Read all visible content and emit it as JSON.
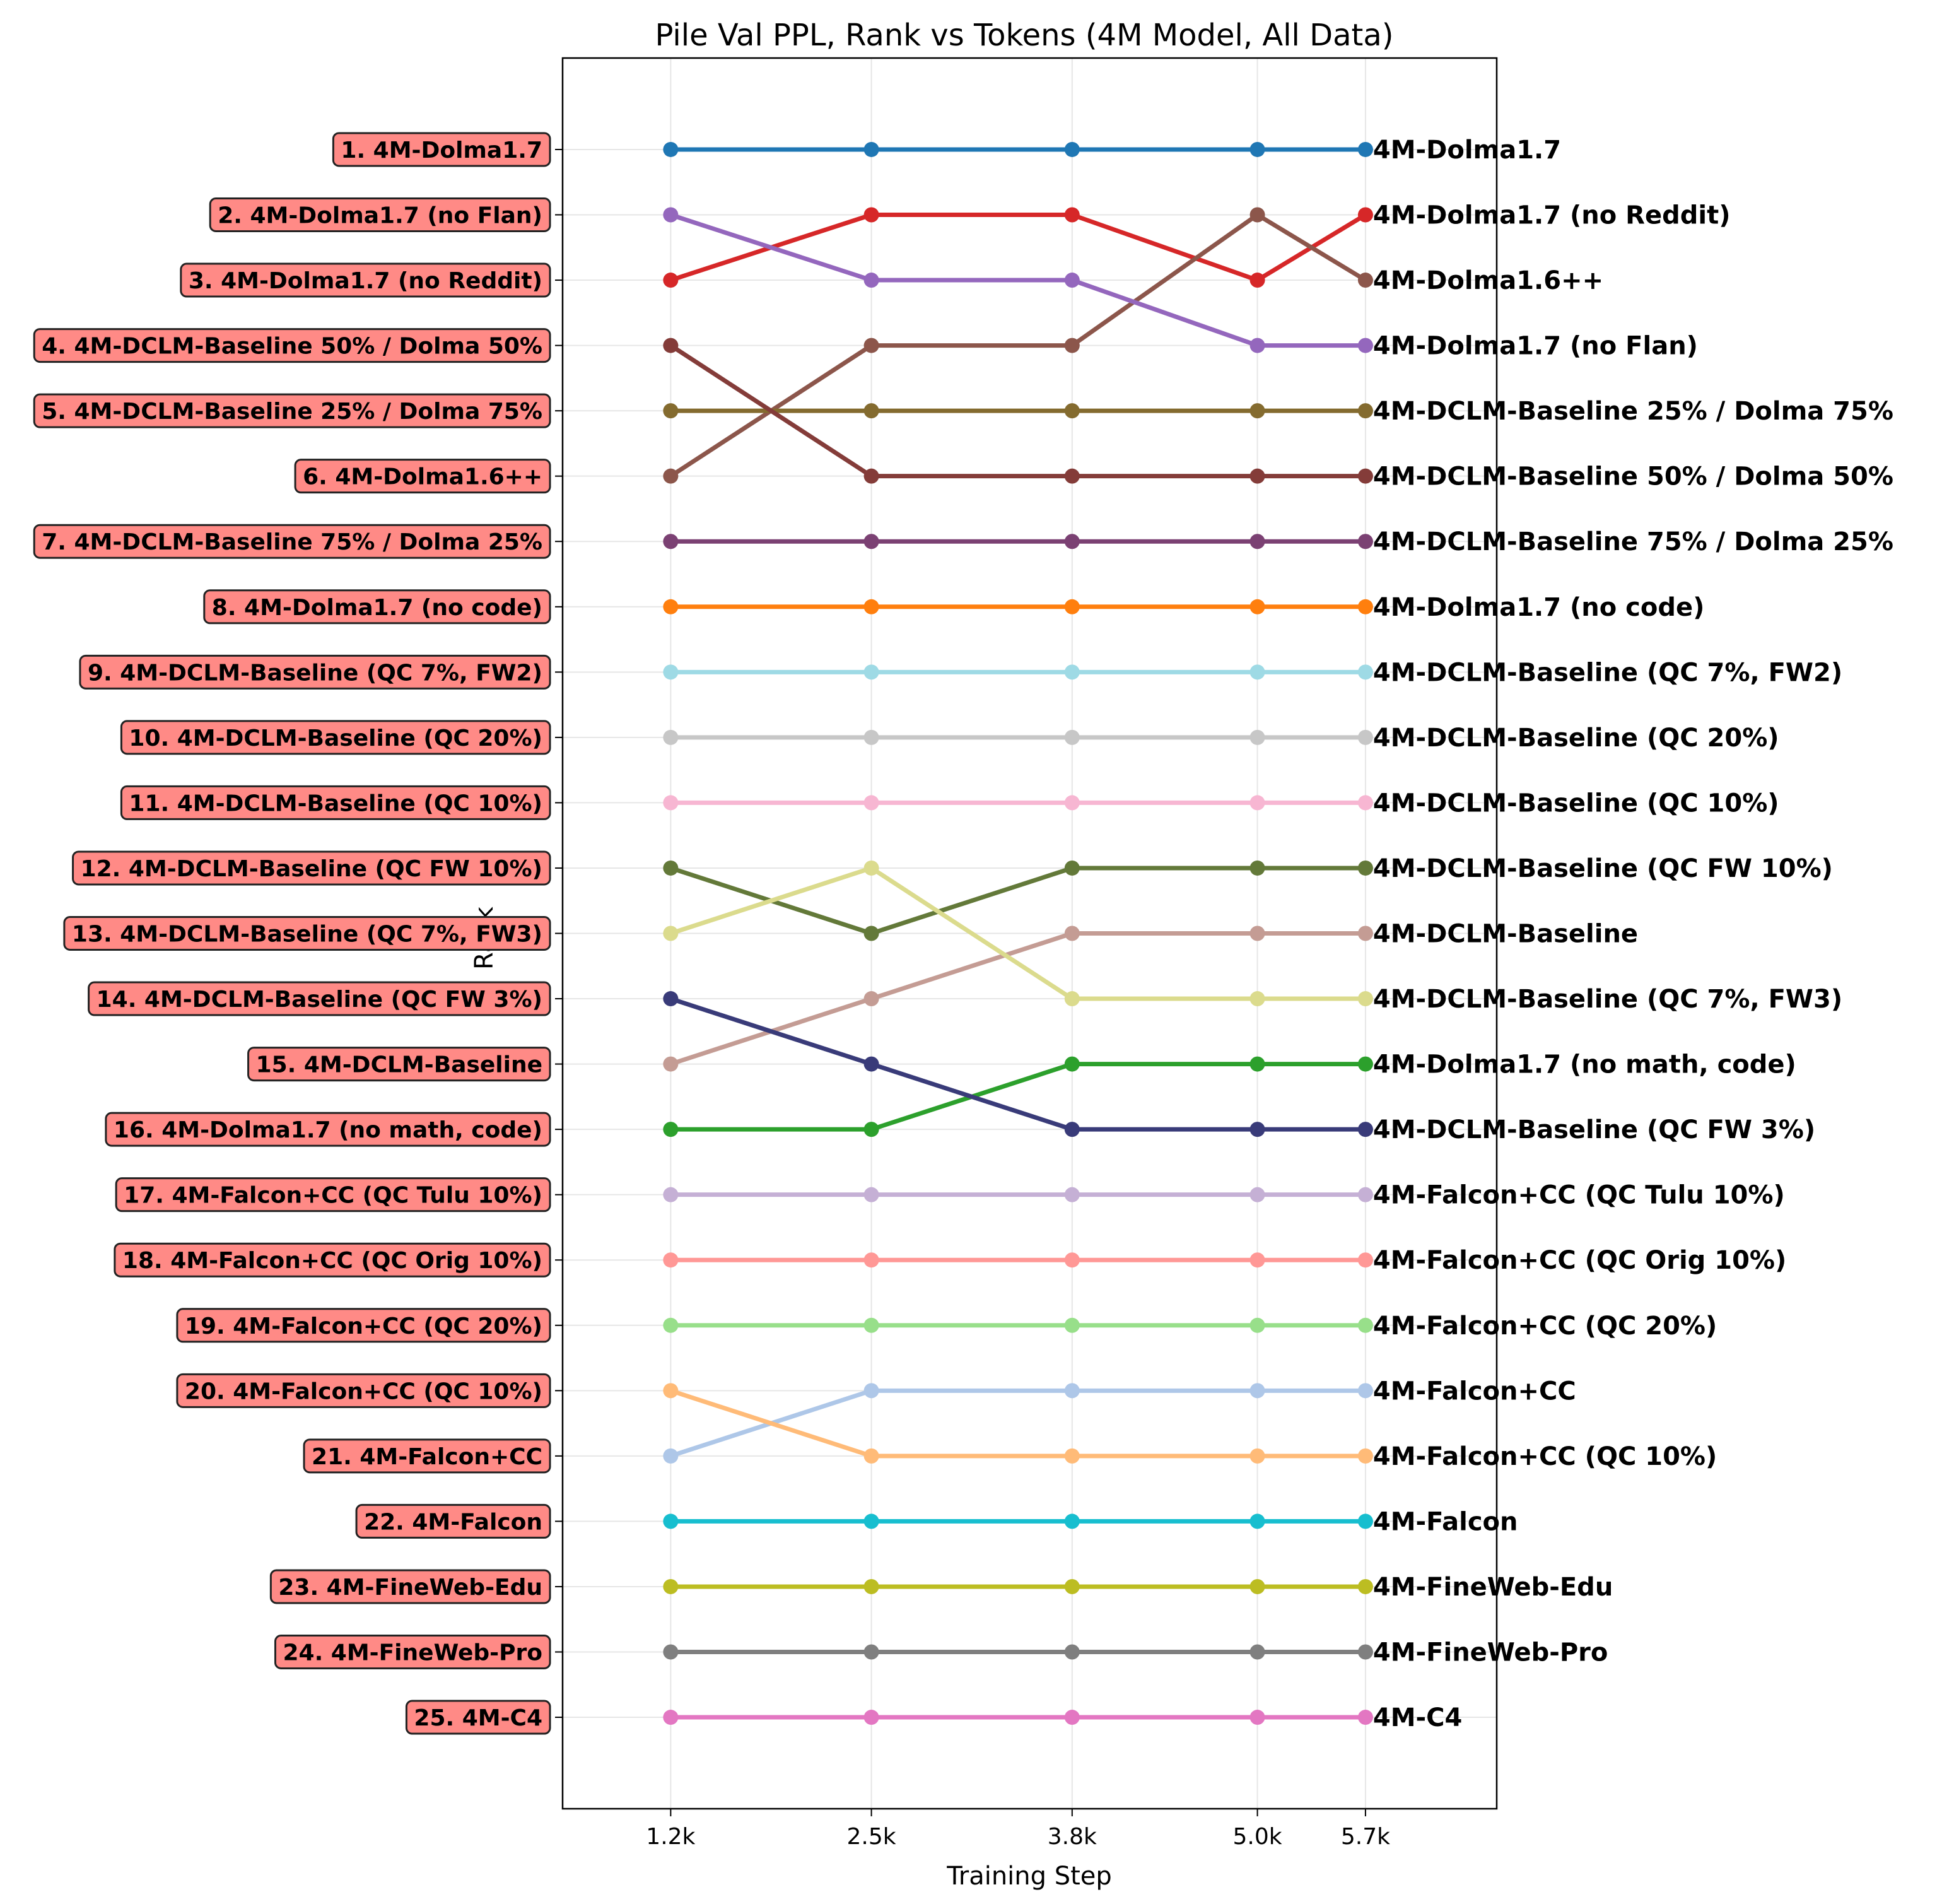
{
  "chart_data": {
    "type": "line",
    "title": "Pile Val PPL, Rank vs Tokens (4M Model, All Data)",
    "xlabel": "Training Step",
    "ylabel": "Rank",
    "x": [
      "1.2k",
      "2.5k",
      "3.8k",
      "5.0k",
      "5.7k"
    ],
    "x_values": [
      1.2,
      2.5,
      3.8,
      5.0,
      5.7
    ],
    "xlim": [
      0.5,
      6.55
    ],
    "ylim": [
      26.4,
      -0.4
    ],
    "y_inverted": true,
    "grid": true,
    "left_labels": [
      "1. 4M-Dolma1.7",
      "2. 4M-Dolma1.7 (no Flan)",
      "3. 4M-Dolma1.7 (no Reddit)",
      "4. 4M-DCLM-Baseline 50% / Dolma 50%",
      "5. 4M-DCLM-Baseline 25% / Dolma 75%",
      "6. 4M-Dolma1.6++",
      "7. 4M-DCLM-Baseline 75% / Dolma 25%",
      "8. 4M-Dolma1.7 (no code)",
      "9. 4M-DCLM-Baseline (QC 7%, FW2)",
      "10. 4M-DCLM-Baseline (QC 20%)",
      "11. 4M-DCLM-Baseline (QC 10%)",
      "12. 4M-DCLM-Baseline (QC FW 10%)",
      "13. 4M-DCLM-Baseline (QC 7%, FW3)",
      "14. 4M-DCLM-Baseline (QC FW 3%)",
      "15. 4M-DCLM-Baseline",
      "16. 4M-Dolma1.7 (no math, code)",
      "17. 4M-Falcon+CC (QC Tulu 10%)",
      "18. 4M-Falcon+CC (QC Orig 10%)",
      "19. 4M-Falcon+CC (QC 20%)",
      "20. 4M-Falcon+CC (QC 10%)",
      "21. 4M-Falcon+CC",
      "22. 4M-Falcon",
      "23. 4M-FineWeb-Edu",
      "24. 4M-FineWeb-Pro",
      "25. 4M-C4"
    ],
    "left_label_box_color": "#ff8a86",
    "series": [
      {
        "name": "4M-Dolma1.7",
        "color": "#1f77b4",
        "ranks": [
          1,
          1,
          1,
          1,
          1
        ]
      },
      {
        "name": "4M-Dolma1.7 (no Reddit)",
        "color": "#d62728",
        "ranks": [
          3,
          2,
          2,
          3,
          2
        ]
      },
      {
        "name": "4M-Dolma1.6++",
        "color": "#8c564b",
        "ranks": [
          6,
          4,
          4,
          2,
          3
        ]
      },
      {
        "name": "4M-Dolma1.7 (no Flan)",
        "color": "#9467bd",
        "ranks": [
          2,
          3,
          3,
          4,
          4
        ]
      },
      {
        "name": "4M-DCLM-Baseline 25% / Dolma 75%",
        "color": "#846b2f",
        "ranks": [
          5,
          5,
          5,
          5,
          5
        ]
      },
      {
        "name": "4M-DCLM-Baseline 50% / Dolma 50%",
        "color": "#843c39",
        "ranks": [
          4,
          6,
          6,
          6,
          6
        ]
      },
      {
        "name": "4M-DCLM-Baseline 75% / Dolma 25%",
        "color": "#7b4173",
        "ranks": [
          7,
          7,
          7,
          7,
          7
        ]
      },
      {
        "name": "4M-Dolma1.7 (no code)",
        "color": "#ff7f0e",
        "ranks": [
          8,
          8,
          8,
          8,
          8
        ]
      },
      {
        "name": "4M-DCLM-Baseline (QC 7%, FW2)",
        "color": "#9edae5",
        "ranks": [
          9,
          9,
          9,
          9,
          9
        ]
      },
      {
        "name": "4M-DCLM-Baseline (QC 20%)",
        "color": "#c7c7c7",
        "ranks": [
          10,
          10,
          10,
          10,
          10
        ]
      },
      {
        "name": "4M-DCLM-Baseline (QC 10%)",
        "color": "#f7b6d2",
        "ranks": [
          11,
          11,
          11,
          11,
          11
        ]
      },
      {
        "name": "4M-DCLM-Baseline (QC FW 10%)",
        "color": "#637939",
        "ranks": [
          12,
          13,
          12,
          12,
          12
        ]
      },
      {
        "name": "4M-DCLM-Baseline",
        "color": "#c49c94",
        "ranks": [
          15,
          14,
          13,
          13,
          13
        ]
      },
      {
        "name": "4M-DCLM-Baseline (QC 7%, FW3)",
        "color": "#dbdb8d",
        "ranks": [
          13,
          12,
          14,
          14,
          14
        ]
      },
      {
        "name": "4M-Dolma1.7 (no math, code)",
        "color": "#2ca02c",
        "ranks": [
          16,
          16,
          15,
          15,
          15
        ]
      },
      {
        "name": "4M-DCLM-Baseline (QC FW 3%)",
        "color": "#393b79",
        "ranks": [
          14,
          15,
          16,
          16,
          16
        ]
      },
      {
        "name": "4M-Falcon+CC (QC Tulu 10%)",
        "color": "#c5b0d5",
        "ranks": [
          17,
          17,
          17,
          17,
          17
        ]
      },
      {
        "name": "4M-Falcon+CC (QC Orig 10%)",
        "color": "#ff9896",
        "ranks": [
          18,
          18,
          18,
          18,
          18
        ]
      },
      {
        "name": "4M-Falcon+CC (QC 20%)",
        "color": "#98df8a",
        "ranks": [
          19,
          19,
          19,
          19,
          19
        ]
      },
      {
        "name": "4M-Falcon+CC",
        "color": "#aec7e8",
        "ranks": [
          21,
          20,
          20,
          20,
          20
        ]
      },
      {
        "name": "4M-Falcon+CC (QC 10%)",
        "color": "#ffbb78",
        "ranks": [
          20,
          21,
          21,
          21,
          21
        ]
      },
      {
        "name": "4M-Falcon",
        "color": "#17becf",
        "ranks": [
          22,
          22,
          22,
          22,
          22
        ]
      },
      {
        "name": "4M-FineWeb-Edu",
        "color": "#bcbd22",
        "ranks": [
          23,
          23,
          23,
          23,
          23
        ]
      },
      {
        "name": "4M-FineWeb-Pro",
        "color": "#7f7f7f",
        "ranks": [
          24,
          24,
          24,
          24,
          24
        ]
      },
      {
        "name": "4M-C4",
        "color": "#e377c2",
        "ranks": [
          25,
          25,
          25,
          25,
          25
        ]
      }
    ]
  }
}
